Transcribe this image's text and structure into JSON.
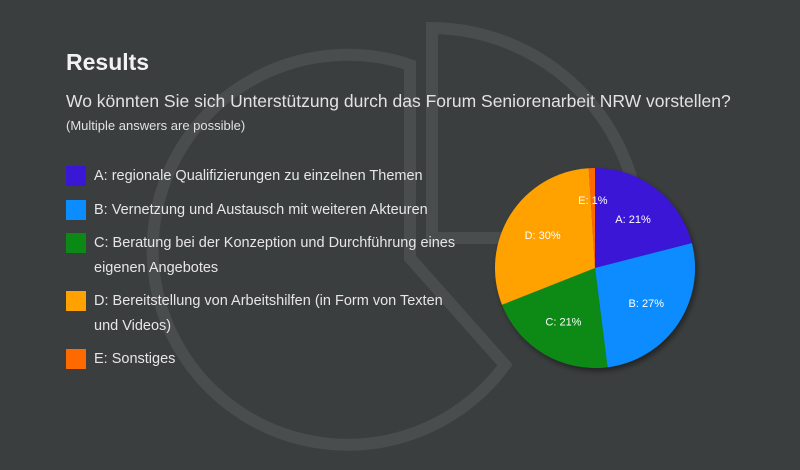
{
  "title": "Results",
  "question": "Wo könnten Sie sich Unterstützung durch das Forum Seniorenarbeit NRW vorstellen?",
  "hint": "(Multiple answers are possible)",
  "legend": [
    {
      "label": "A: regionale Qualifizierungen zu einzelnen Themen",
      "color": "#3a16d6"
    },
    {
      "label": "B: Vernetzung und Austausch mit weiteren Akteuren",
      "color": "#0b8cff"
    },
    {
      "label": "C: Beratung bei der Konzeption und Durchführung eines eigenen Angebotes",
      "color": "#0a8a14"
    },
    {
      "label": "D: Bereitstellung von Arbeitshilfen (in Form von Texten und Videos)",
      "color": "#ffa200"
    },
    {
      "label": "E: Sonstiges",
      "color": "#ff6a00"
    }
  ],
  "chart_data": {
    "type": "pie",
    "categories": [
      "A",
      "B",
      "C",
      "D",
      "E"
    ],
    "values": [
      21,
      27,
      21,
      30,
      1
    ],
    "labels": [
      "A: 21%",
      "B: 27%",
      "C: 21%",
      "D: 30%",
      "E: 1%"
    ],
    "colors": [
      "#3a16d6",
      "#0b8cff",
      "#0a8a14",
      "#ffa200",
      "#ff6a00"
    ]
  }
}
